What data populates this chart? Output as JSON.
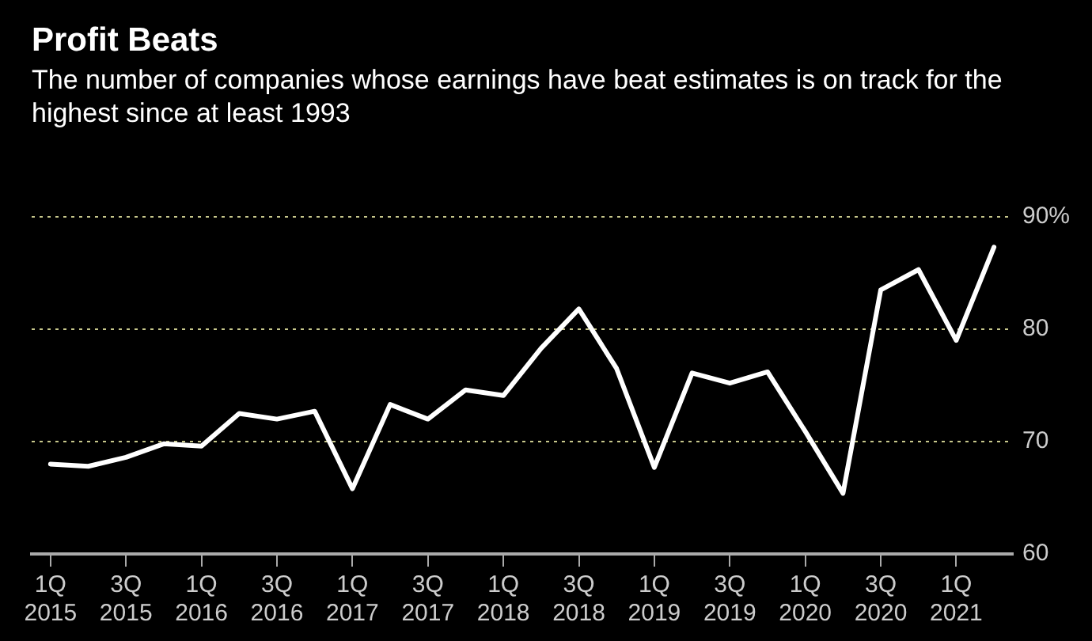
{
  "chart_data": {
    "type": "line",
    "title": "Profit Beats",
    "subtitle": "The number of companies whose earnings have beat estimates is on track for the highest since at least 1993",
    "categories": [
      "1Q 2015",
      null,
      "3Q 2015",
      null,
      "1Q 2016",
      null,
      "3Q 2016",
      null,
      "1Q 2017",
      null,
      "3Q 2017",
      null,
      "1Q 2018",
      null,
      "3Q 2018",
      null,
      "1Q 2019",
      null,
      "3Q 2019",
      null,
      "1Q 2020",
      null,
      "3Q 2020",
      null,
      "1Q 2021",
      null
    ],
    "series": [
      {
        "color": "#ffffff",
        "values": [
          68.0,
          67.8,
          68.6,
          69.8,
          69.6,
          72.5,
          72.0,
          72.7,
          65.8,
          73.3,
          72.0,
          74.6,
          74.1,
          78.3,
          81.8,
          76.5,
          67.7,
          76.1,
          75.2,
          76.2,
          70.9,
          65.4,
          83.5,
          85.3,
          79.0,
          87.3
        ]
      }
    ],
    "ylim": [
      60,
      90
    ],
    "yticks": [
      60,
      70,
      80,
      {
        "value": 90,
        "label": "90%"
      }
    ],
    "grid": "y",
    "legend": false,
    "marker": "none",
    "line_style": "solid"
  }
}
